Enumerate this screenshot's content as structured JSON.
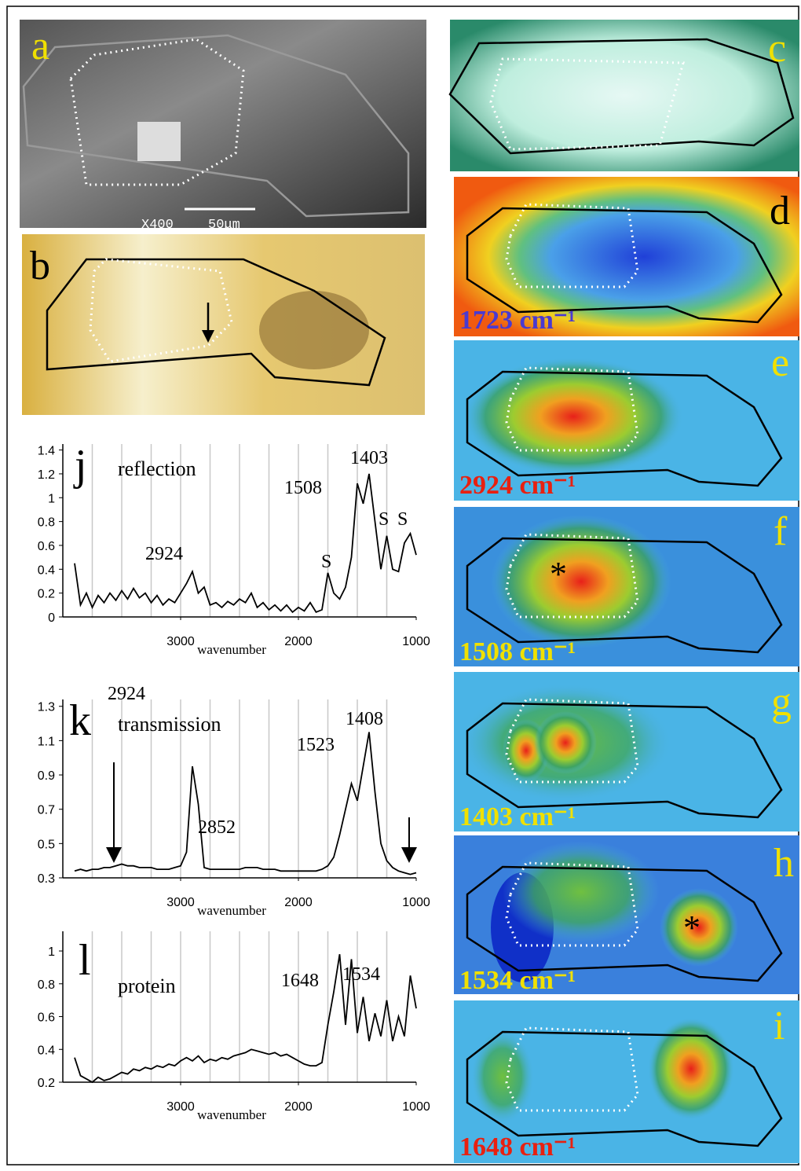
{
  "panels": [
    {
      "letter": "a",
      "scale": "X400",
      "bar": "50μm"
    },
    {
      "letter": "b"
    },
    {
      "letter": "c"
    },
    {
      "letter": "d",
      "caption": "1723 cm⁻¹"
    },
    {
      "letter": "e",
      "caption": "2924 cm⁻¹"
    },
    {
      "letter": "f",
      "caption": "1508 cm⁻¹",
      "marker": "*"
    },
    {
      "letter": "g",
      "caption": "1403 cm⁻¹"
    },
    {
      "letter": "h",
      "caption": "1534 cm⁻¹",
      "marker": "*"
    },
    {
      "letter": "i",
      "caption": "1648 cm⁻¹"
    }
  ],
  "chart_data": [
    {
      "type": "line",
      "label": "j",
      "title": "reflection",
      "xlabel": "wavenumber",
      "annotations": [
        "2924",
        "1508",
        "1403",
        "S",
        "S",
        "S"
      ],
      "xlim": [
        4000,
        1000
      ],
      "xticks": [
        3000,
        2000,
        1000
      ],
      "xgrid": [
        3750,
        3500,
        3250,
        3000,
        2750,
        2500,
        2250,
        2000,
        1750,
        1500,
        1250
      ],
      "ylim": [
        0,
        1.45
      ],
      "yticks": [
        0,
        0.2,
        0.4,
        0.6,
        0.8,
        1,
        1.2,
        1.4
      ],
      "x": [
        3900,
        3850,
        3800,
        3750,
        3700,
        3650,
        3600,
        3550,
        3500,
        3450,
        3400,
        3350,
        3300,
        3250,
        3200,
        3150,
        3100,
        3050,
        3000,
        2950,
        2900,
        2850,
        2800,
        2750,
        2700,
        2650,
        2600,
        2550,
        2500,
        2450,
        2400,
        2350,
        2300,
        2250,
        2200,
        2150,
        2100,
        2050,
        2000,
        1950,
        1900,
        1850,
        1800,
        1750,
        1700,
        1650,
        1600,
        1550,
        1500,
        1450,
        1400,
        1350,
        1300,
        1250,
        1200,
        1150,
        1100,
        1050,
        1000
      ],
      "series": [
        {
          "color": "#000000",
          "values": [
            0.45,
            0.1,
            0.2,
            0.08,
            0.18,
            0.12,
            0.2,
            0.14,
            0.22,
            0.15,
            0.24,
            0.16,
            0.2,
            0.12,
            0.18,
            0.1,
            0.15,
            0.12,
            0.2,
            0.28,
            0.38,
            0.2,
            0.25,
            0.1,
            0.12,
            0.08,
            0.13,
            0.1,
            0.15,
            0.12,
            0.2,
            0.08,
            0.12,
            0.06,
            0.1,
            0.05,
            0.1,
            0.04,
            0.08,
            0.05,
            0.12,
            0.04,
            0.06,
            0.37,
            0.2,
            0.15,
            0.25,
            0.5,
            1.12,
            0.95,
            1.2,
            0.8,
            0.4,
            0.68,
            0.4,
            0.38,
            0.62,
            0.7,
            0.52
          ]
        }
      ]
    },
    {
      "type": "line",
      "label": "k",
      "title": "transmission",
      "xlabel": "wavenumber",
      "annotations": [
        "2924",
        "2852",
        "1523",
        "1408"
      ],
      "xlim": [
        4000,
        1000
      ],
      "xticks": [
        3000,
        2000,
        1000
      ],
      "xgrid": [
        3750,
        3500,
        3250,
        3000,
        2750,
        2500,
        2250,
        2000,
        1750,
        1500,
        1250
      ],
      "ylim": [
        0.3,
        1.34
      ],
      "yticks": [
        0.3,
        0.5,
        0.7,
        0.9,
        1.1,
        1.3
      ],
      "x": [
        3900,
        3850,
        3800,
        3750,
        3700,
        3650,
        3600,
        3550,
        3500,
        3450,
        3400,
        3350,
        3300,
        3250,
        3200,
        3150,
        3100,
        3050,
        3000,
        2950,
        2900,
        2850,
        2800,
        2750,
        2700,
        2650,
        2600,
        2550,
        2500,
        2450,
        2400,
        2350,
        2300,
        2250,
        2200,
        2150,
        2100,
        2050,
        2000,
        1950,
        1900,
        1850,
        1800,
        1750,
        1700,
        1650,
        1600,
        1550,
        1500,
        1450,
        1400,
        1350,
        1300,
        1250,
        1200,
        1150,
        1100,
        1050,
        1000
      ],
      "series": [
        {
          "color": "#000000",
          "values": [
            0.34,
            0.35,
            0.34,
            0.35,
            0.35,
            0.36,
            0.36,
            0.37,
            0.38,
            0.37,
            0.37,
            0.36,
            0.36,
            0.36,
            0.35,
            0.35,
            0.35,
            0.36,
            0.37,
            0.45,
            0.95,
            0.73,
            0.36,
            0.35,
            0.35,
            0.35,
            0.35,
            0.35,
            0.35,
            0.36,
            0.36,
            0.36,
            0.35,
            0.35,
            0.35,
            0.34,
            0.34,
            0.34,
            0.34,
            0.34,
            0.34,
            0.34,
            0.35,
            0.37,
            0.42,
            0.55,
            0.7,
            0.85,
            0.75,
            0.95,
            1.15,
            0.8,
            0.5,
            0.4,
            0.36,
            0.34,
            0.33,
            0.32,
            0.33
          ]
        }
      ]
    },
    {
      "type": "line",
      "label": "l",
      "title": "protein",
      "xlabel": "wavenumber",
      "annotations": [
        "1648",
        "1534"
      ],
      "xlim": [
        4000,
        1000
      ],
      "xticks": [
        3000,
        2000,
        1000
      ],
      "xgrid": [
        3750,
        3500,
        3250,
        3000,
        2750,
        2500,
        2250,
        2000,
        1750,
        1500,
        1250
      ],
      "ylim": [
        0.2,
        1.12
      ],
      "yticks": [
        0.2,
        0.4,
        0.6,
        0.8,
        1
      ],
      "x": [
        3900,
        3850,
        3800,
        3750,
        3700,
        3650,
        3600,
        3550,
        3500,
        3450,
        3400,
        3350,
        3300,
        3250,
        3200,
        3150,
        3100,
        3050,
        3000,
        2950,
        2900,
        2850,
        2800,
        2750,
        2700,
        2650,
        2600,
        2550,
        2500,
        2450,
        2400,
        2350,
        2300,
        2250,
        2200,
        2150,
        2100,
        2050,
        2000,
        1950,
        1900,
        1850,
        1800,
        1750,
        1700,
        1650,
        1600,
        1550,
        1500,
        1450,
        1400,
        1350,
        1300,
        1250,
        1200,
        1150,
        1100,
        1050,
        1000
      ],
      "series": [
        {
          "color": "#000000",
          "values": [
            0.35,
            0.24,
            0.22,
            0.2,
            0.23,
            0.21,
            0.22,
            0.24,
            0.26,
            0.25,
            0.28,
            0.27,
            0.29,
            0.28,
            0.3,
            0.29,
            0.31,
            0.3,
            0.33,
            0.35,
            0.33,
            0.36,
            0.32,
            0.34,
            0.33,
            0.35,
            0.34,
            0.36,
            0.37,
            0.38,
            0.4,
            0.39,
            0.38,
            0.37,
            0.38,
            0.36,
            0.37,
            0.35,
            0.33,
            0.31,
            0.3,
            0.3,
            0.32,
            0.55,
            0.75,
            0.98,
            0.55,
            0.95,
            0.5,
            0.72,
            0.45,
            0.62,
            0.48,
            0.7,
            0.45,
            0.6,
            0.48,
            0.85,
            0.65
          ]
        }
      ]
    }
  ]
}
